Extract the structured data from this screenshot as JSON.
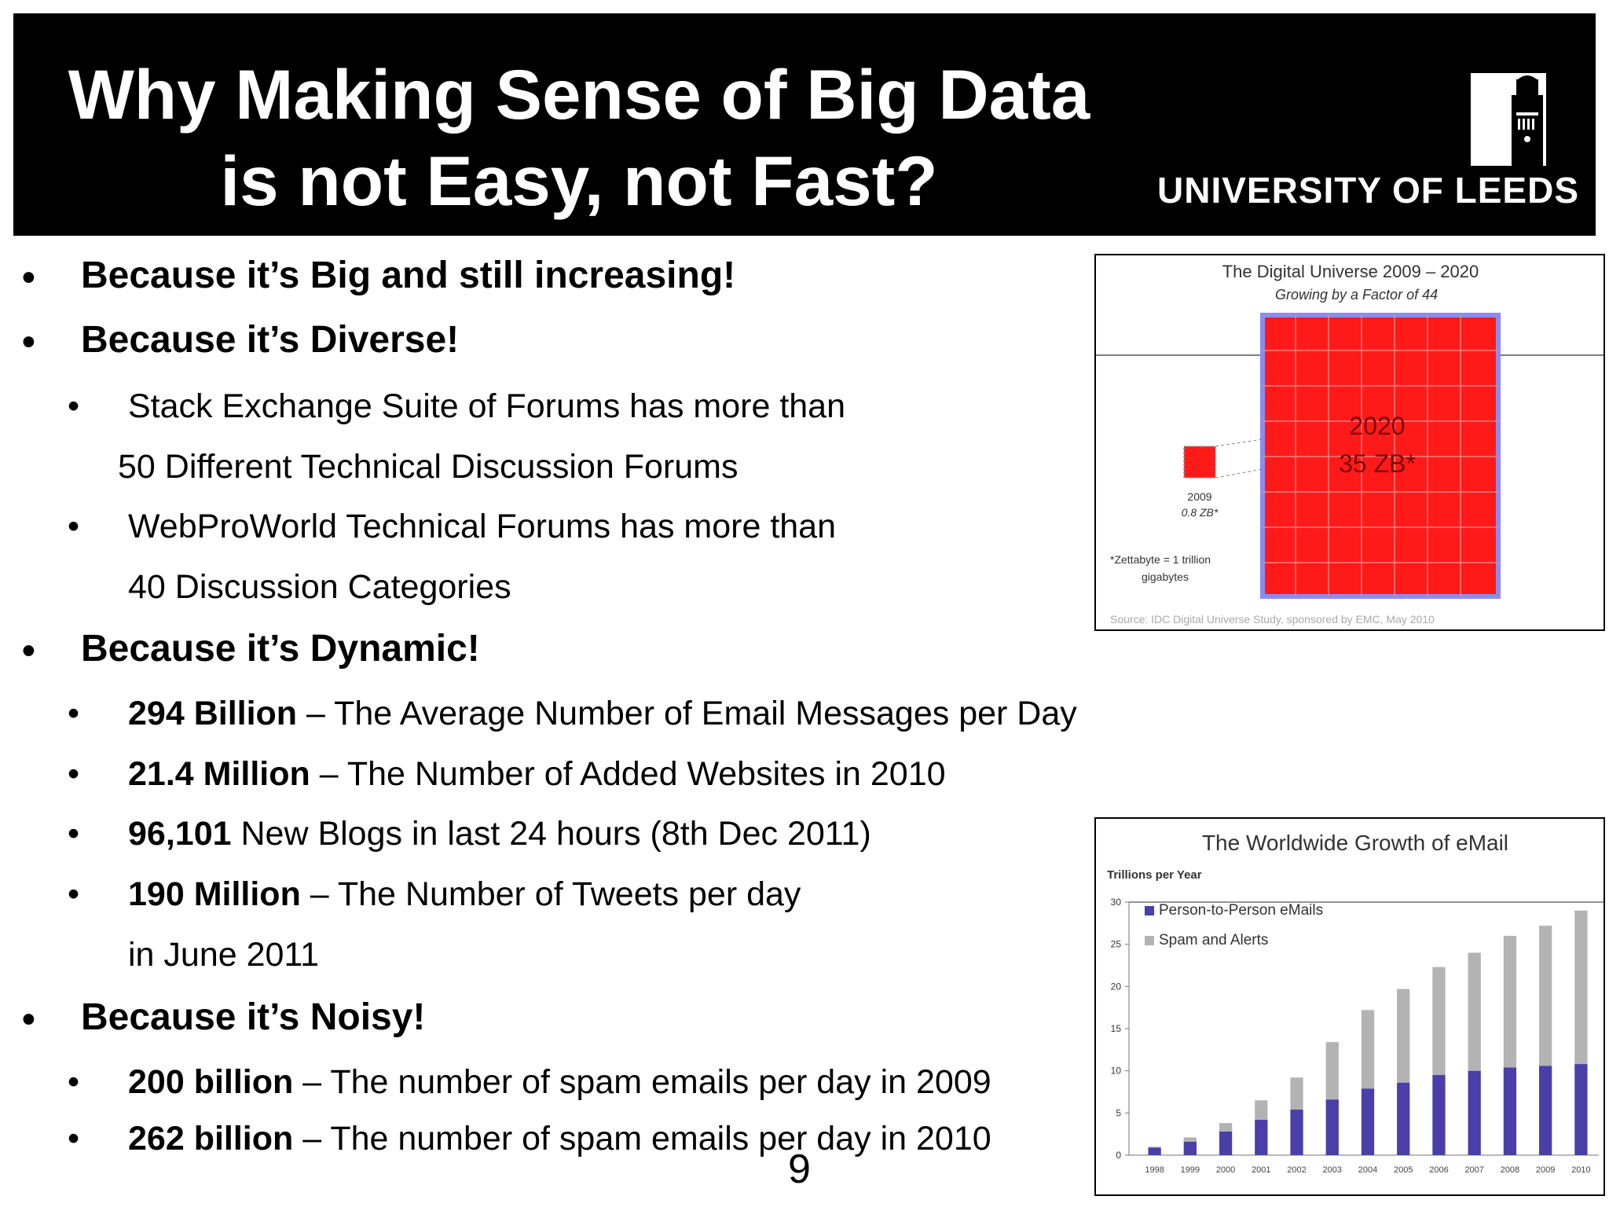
{
  "slide": {
    "title_line1": "Why Making Sense of Big Data",
    "title_line2": "is not Easy, not Fast?",
    "university": "UNIVERSITY OF LEEDS",
    "page_number": "9"
  },
  "bullets": {
    "b1": "Because it’s Big and still increasing!",
    "b2": "Because it’s Diverse!",
    "b2_1_line1": "Stack Exchange Suite of Forums has more than",
    "b2_1_line2": "50 Different Technical Discussion Forums",
    "b2_2_line1": "WebProWorld Technical Forums has more than",
    "b2_2_line2": "40 Discussion Categories",
    "b3": "Because it’s Dynamic!",
    "b3_1_bold": "294 Billion",
    "b3_1_rest": " – The Average Number of Email Messages per Day",
    "b3_2_bold": "21.4 Million",
    "b3_2_rest": " – The Number of Added Websites in 2010",
    "b3_3_bold": "96,101",
    "b3_3_rest": " New Blogs in last 24 hours (8th Dec 2011)",
    "b3_4_bold": "190 Million",
    "b3_4_rest": " – The Number of Tweets per day",
    "b3_4_line2": "in June 2011",
    "b4": "Because it’s Noisy!",
    "b4_1_bold": "200 billion",
    "b4_1_rest": " – The number of spam emails per day in 2009",
    "b4_2_bold": "262 billion",
    "b4_2_rest": " – The number of spam emails per day in 2010"
  },
  "figure1": {
    "title": "The Digital Universe 2009 – 2020",
    "subtitle": "Growing by a Factor of 44",
    "big_label_year": "2020",
    "big_label_value": "35 ZB*",
    "small_label_year": "2009",
    "small_label_value": "0.8 ZB*",
    "footnote_line1": "*Zettabyte = 1 trillion",
    "footnote_line2": "gigabytes",
    "source": "Source: IDC Digital Universe Study, sponsored by EMC, May 2010",
    "colors": {
      "fill": "#ff1a1a",
      "border": "#8a8cf0"
    }
  },
  "chart_data": {
    "type": "bar",
    "title": "The Worldwide Growth of eMail",
    "ylabel": "Trillions per Year",
    "xlabel": "",
    "ylim": [
      0,
      30
    ],
    "yticks": [
      0,
      5,
      10,
      15,
      20,
      25,
      30
    ],
    "stacked": true,
    "legend": "top-left",
    "categories": [
      "1998",
      "1999",
      "2000",
      "2001",
      "2002",
      "2003",
      "2004",
      "2005",
      "2006",
      "2007",
      "2008",
      "2009",
      "2010"
    ],
    "series": [
      {
        "name": "Person-to-Person eMails",
        "color": "#4a3fa8",
        "values": [
          0.9,
          1.6,
          2.8,
          4.2,
          5.4,
          6.6,
          7.9,
          8.6,
          9.5,
          10.0,
          10.4,
          10.6,
          10.8
        ]
      },
      {
        "name": "Spam and Alerts",
        "color": "#b3b3b3",
        "values": [
          0.1,
          0.5,
          1.0,
          2.3,
          3.8,
          6.8,
          9.3,
          11.1,
          12.8,
          14.0,
          15.6,
          16.6,
          18.2
        ]
      }
    ]
  }
}
